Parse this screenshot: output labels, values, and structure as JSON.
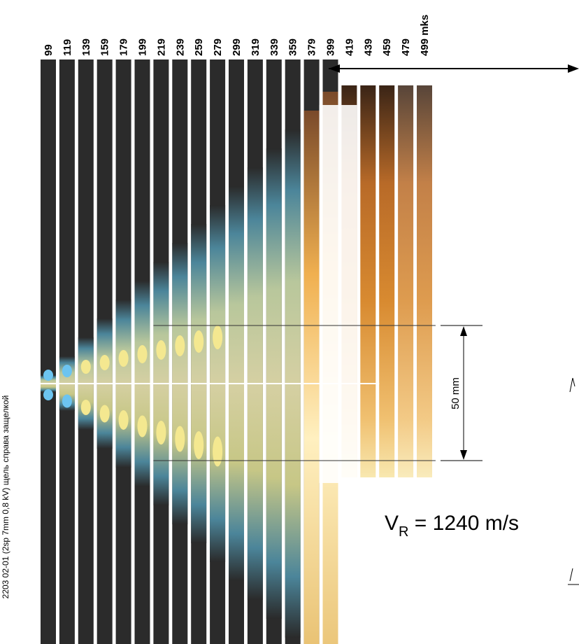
{
  "frames": {
    "labels": [
      "99",
      "119",
      "139",
      "159",
      "179",
      "199",
      "219",
      "239",
      "259",
      "279",
      "299",
      "319",
      "339",
      "359",
      "379",
      "399",
      "419",
      "439",
      "459",
      "479",
      "499 mks"
    ]
  },
  "side_note": "2203 02-01 (2sp 7mm 0,8 kV) щель справа защелкой",
  "scale": {
    "label": "50 mm"
  },
  "velocity": {
    "symbol": "V",
    "subscript": "R",
    "rest": " = 1240 m/s"
  }
}
